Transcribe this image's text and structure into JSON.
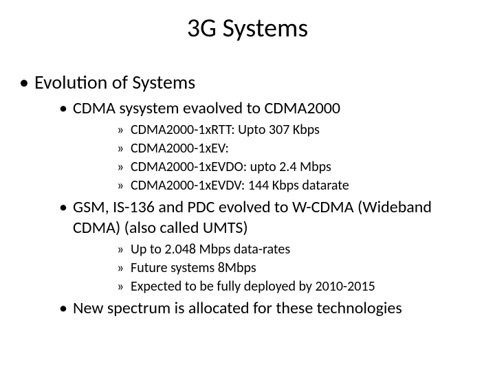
{
  "slide": {
    "title": "3G Systems",
    "bullets": {
      "lvl1_0": "Evolution of Systems",
      "lvl2_0": "CDMA sysystem evaolved to CDMA2000",
      "lvl3_0": "CDMA2000-1xRTT: Upto 307 Kbps",
      "lvl3_1": "CDMA2000-1xEV:",
      "lvl3_2": "CDMA2000-1xEVDO: upto 2.4 Mbps",
      "lvl3_3": "CDMA2000-1xEVDV: 144 Kbps datarate",
      "lvl2_1": "GSM, IS-136 and PDC evolved to W-CDMA (Wideband CDMA) (also called UMTS)",
      "lvl3_4": "Up to 2.048 Mbps data-rates",
      "lvl3_5": "Future systems 8Mbps",
      "lvl3_6": "Expected to be fully deployed by 2010-2015",
      "lvl2_2": "New spectrum is allocated for these technologies"
    }
  },
  "style": {
    "background_color": "#ffffff",
    "text_color": "#000000",
    "title_fontsize": 38,
    "lvl1_fontsize": 28,
    "lvl2_fontsize": 24,
    "lvl3_fontsize": 20,
    "font_family": "Calibri"
  }
}
